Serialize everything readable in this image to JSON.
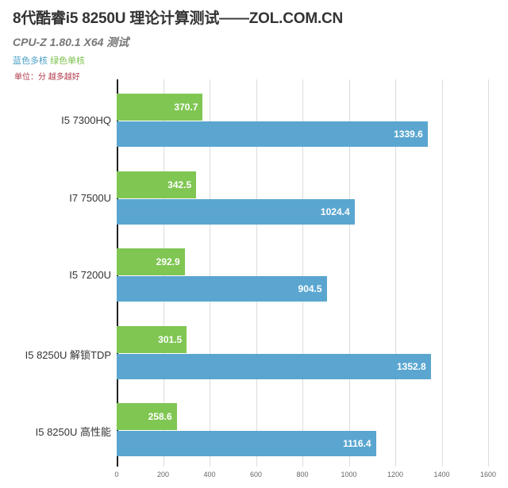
{
  "header": {
    "title": "8代酷睿i5 8250U 理论计算测试——ZOL.COM.CN",
    "subtitle": "CPU-Z 1.80.1 X64 测试",
    "legend_blue": "蓝色多核",
    "legend_green": "绿色单核",
    "unit": "单位：分 越多越好"
  },
  "colors": {
    "single": "#80c653",
    "multi": "#5aa6d0"
  },
  "chart_data": {
    "type": "bar",
    "orientation": "horizontal",
    "title": "8代酷睿i5 8250U 理论计算测试——ZOL.COM.CN",
    "subtitle": "CPU-Z 1.80.1 X64 测试",
    "categories": [
      "I5 7300HQ",
      "I7 7500U",
      "I5 7200U",
      "I5 8250U 解锁TDP",
      "I5 8250U 高性能"
    ],
    "series": [
      {
        "name": "绿色单核",
        "values": [
          370.7,
          342.5,
          292.9,
          301.5,
          258.6
        ],
        "color": "#80c653"
      },
      {
        "name": "蓝色多核",
        "values": [
          1339.6,
          1024.4,
          904.5,
          1352.8,
          1116.4
        ],
        "color": "#5aa6d0"
      }
    ],
    "xlabel": "",
    "ylabel": "单位：分 越多越好",
    "xlim": [
      0,
      1600
    ],
    "xticks": [
      "0",
      "200",
      "400",
      "600",
      "800",
      "1000",
      "1200",
      "1400",
      "1600"
    ],
    "grid": true,
    "legend_position": "top-left"
  }
}
